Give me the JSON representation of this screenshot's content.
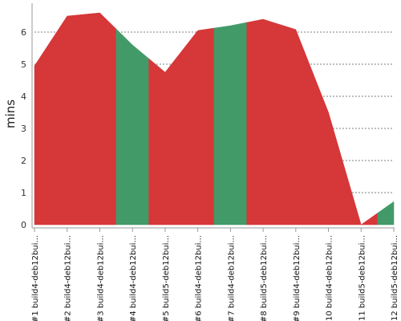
{
  "chart_data": {
    "type": "area",
    "ylabel": "mins",
    "xlabel": "",
    "ylim": [
      0,
      6.9
    ],
    "yticks": [
      0,
      1,
      2,
      3,
      4,
      5,
      6
    ],
    "grid": true,
    "categories": [
      "#1 build4-deb12bui...",
      "#2 build4-deb12bui...",
      "#3 build4-deb12bui...",
      "#4 build4-deb12bui...",
      "#5 build5-deb12bui...",
      "#6 build4-deb12bui...",
      "#7 build4-deb12bui...",
      "#8 build5-deb12bui...",
      "#9 build4-deb12bui...",
      "#10 build4-deb12bui...",
      "#11 build5-deb12bui...",
      "#12 build5-deb12bui..."
    ],
    "values": [
      4.95,
      6.5,
      6.6,
      5.6,
      4.75,
      6.05,
      6.2,
      6.4,
      6.08,
      3.5,
      0.0,
      0.72
    ],
    "status": [
      "failure",
      "failure",
      "failure",
      "success",
      "failure",
      "failure",
      "success",
      "failure",
      "failure",
      "failure",
      "failure",
      "success"
    ],
    "colors": {
      "success": "#439a69",
      "failure": "#d63738"
    }
  }
}
